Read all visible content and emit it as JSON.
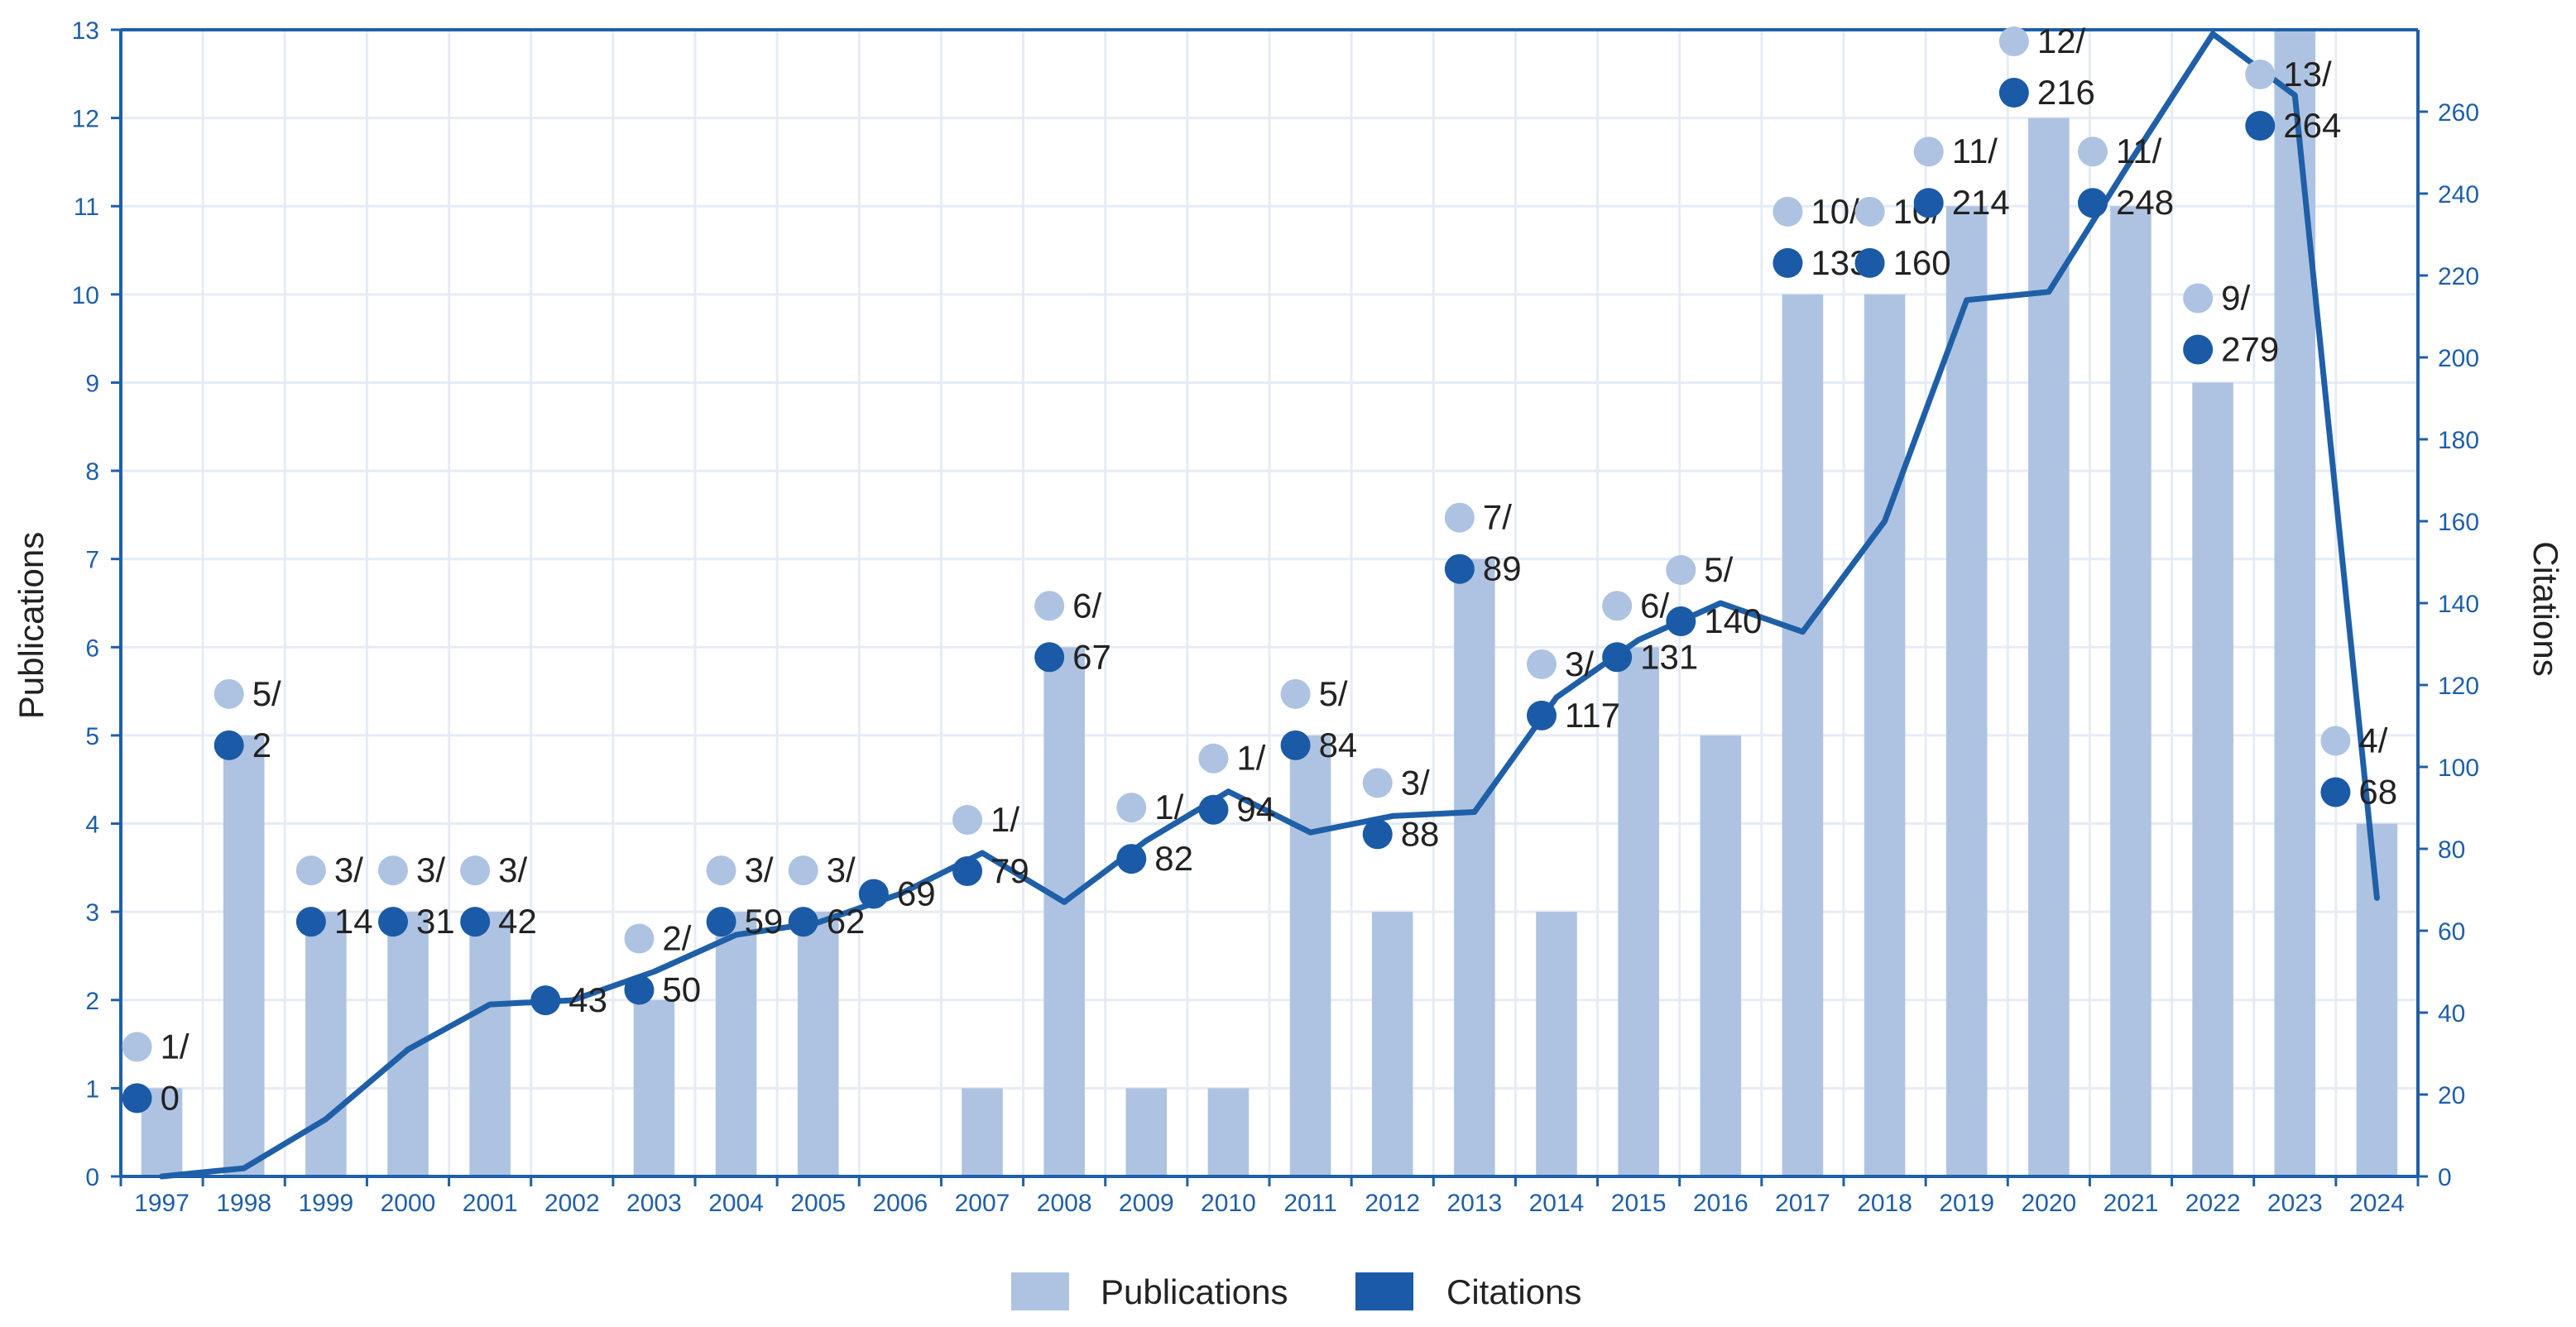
{
  "chart_data": {
    "type": "bar",
    "categories": [
      "1997",
      "1998",
      "1999",
      "2000",
      "2001",
      "2002",
      "2003",
      "2004",
      "2005",
      "2006",
      "2007",
      "2008",
      "2009",
      "2010",
      "2011",
      "2012",
      "2013",
      "2014",
      "2015",
      "2016",
      "2017",
      "2018",
      "2019",
      "2020",
      "2021",
      "2022",
      "2023",
      "2024"
    ],
    "series": [
      {
        "name": "Publications",
        "type": "bar",
        "axis": "left",
        "values": [
          1,
          5,
          3,
          3,
          3,
          0,
          2,
          3,
          3,
          0,
          1,
          6,
          1,
          1,
          5,
          3,
          7,
          3,
          6,
          5,
          10,
          10,
          11,
          12,
          11,
          9,
          13,
          4
        ]
      },
      {
        "name": "Citations",
        "type": "line",
        "axis": "right",
        "values": [
          0,
          2,
          14,
          31,
          42,
          43,
          50,
          59,
          62,
          69,
          79,
          67,
          82,
          94,
          84,
          88,
          89,
          117,
          131,
          140,
          133,
          160,
          214,
          216,
          248,
          279,
          264,
          68
        ]
      }
    ],
    "annotations": [
      {
        "category": "1997",
        "pub_label": "1/",
        "cit_label": "0"
      },
      {
        "category": "1998",
        "pub_label": "5/",
        "cit_label": "2"
      },
      {
        "category": "1999",
        "pub_label": "3/",
        "cit_label": "14"
      },
      {
        "category": "2000",
        "pub_label": "3/",
        "cit_label": "31"
      },
      {
        "category": "2001",
        "pub_label": "3/",
        "cit_label": "42"
      },
      {
        "category": "2002",
        "pub_label": "",
        "cit_label": "43"
      },
      {
        "category": "2003",
        "pub_label": "2/",
        "cit_label": "50"
      },
      {
        "category": "2004",
        "pub_label": "3/",
        "cit_label": "59"
      },
      {
        "category": "2005",
        "pub_label": "3/",
        "cit_label": "62"
      },
      {
        "category": "2006",
        "pub_label": "",
        "cit_label": "69"
      },
      {
        "category": "2007",
        "pub_label": "1/",
        "cit_label": "79"
      },
      {
        "category": "2008",
        "pub_label": "6/",
        "cit_label": "67"
      },
      {
        "category": "2009",
        "pub_label": "1/",
        "cit_label": "82"
      },
      {
        "category": "2010",
        "pub_label": "1/",
        "cit_label": "94"
      },
      {
        "category": "2011",
        "pub_label": "5/",
        "cit_label": "84"
      },
      {
        "category": "2012",
        "pub_label": "3/",
        "cit_label": "88"
      },
      {
        "category": "2013",
        "pub_label": "7/",
        "cit_label": "89"
      },
      {
        "category": "2014",
        "pub_label": "3/",
        "cit_label": "117"
      },
      {
        "category": "2015",
        "pub_label": "6/",
        "cit_label": "131"
      },
      {
        "category": "2016",
        "pub_label": "5/",
        "cit_label": "140"
      },
      {
        "category": "2017",
        "pub_label": "10/",
        "cit_label": "133"
      },
      {
        "category": "2018",
        "pub_label": "10/",
        "cit_label": "160"
      },
      {
        "category": "2019",
        "pub_label": "11/",
        "cit_label": "214"
      },
      {
        "category": "2020",
        "pub_label": "12/",
        "cit_label": "216"
      },
      {
        "category": "2021",
        "pub_label": "11/",
        "cit_label": "248"
      },
      {
        "category": "2022",
        "pub_label": "9/",
        "cit_label": "279"
      },
      {
        "category": "2023",
        "pub_label": "13/",
        "cit_label": "264"
      },
      {
        "category": "2024",
        "pub_label": "4/",
        "cit_label": "68"
      }
    ],
    "ylabel": "Publications",
    "y2label": "Citations",
    "ylim": [
      0,
      13
    ],
    "y2lim": [
      0,
      280
    ],
    "yticks": [
      0,
      1,
      2,
      3,
      4,
      5,
      6,
      7,
      8,
      9,
      10,
      11,
      12,
      13
    ],
    "y2ticks": [
      0,
      20,
      40,
      60,
      80,
      100,
      120,
      140,
      160,
      180,
      200,
      220,
      240,
      260
    ],
    "grid": true,
    "legend": {
      "position": "bottom-center",
      "items": [
        {
          "label": "Publications",
          "series": "Publications"
        },
        {
          "label": "Citations",
          "series": "Citations"
        }
      ]
    },
    "colors": {
      "bar": "#aec3e1",
      "line": "#1f5fa8",
      "pub_marker": "#aec3e1",
      "cit_marker": "#1a5aa6",
      "grid": "#e6ecf5",
      "axis": "#1f5fa8"
    }
  }
}
